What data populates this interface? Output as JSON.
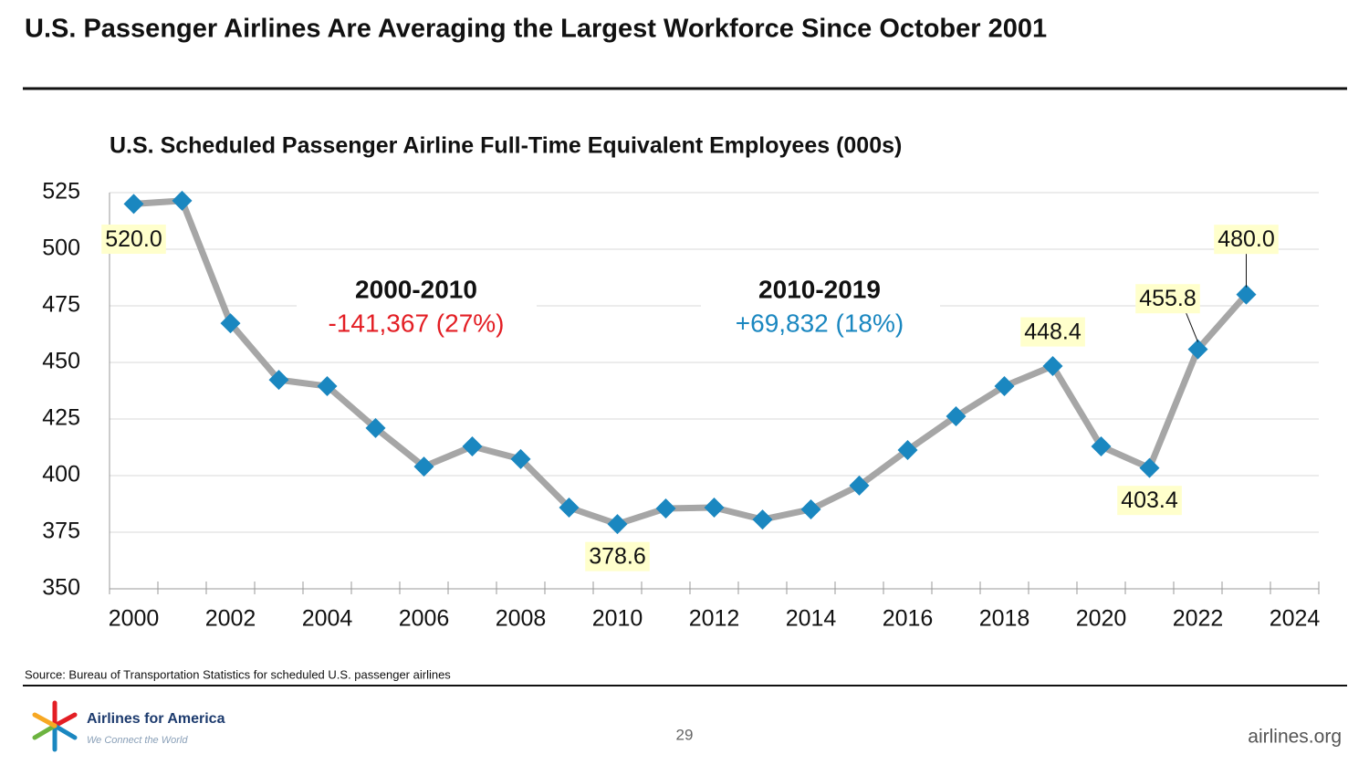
{
  "header": {
    "title": "U.S. Passenger Airlines Are Averaging the Largest Workforce Since October 2001"
  },
  "chart_data": {
    "type": "line",
    "title": "U.S. Scheduled Passenger Airline Full-Time Equivalent Employees (000s)",
    "categories": [
      "2000",
      null,
      "2002",
      null,
      "2004",
      null,
      "2006",
      null,
      "2008",
      null,
      "2010",
      null,
      "2012",
      null,
      "2014",
      null,
      "2016",
      null,
      "2018",
      null,
      "2020",
      null,
      "2022",
      null,
      "2024"
    ],
    "series": [
      {
        "name": "FTE employees",
        "color": "#1a87c0",
        "line_color": "#a6a6a6",
        "values": [
          520.0,
          521.4,
          467.3,
          442.3,
          439.5,
          421.0,
          404.0,
          412.9,
          407.3,
          385.9,
          378.6,
          385.5,
          385.9,
          380.6,
          385.1,
          395.6,
          411.3,
          426.2,
          439.5,
          448.4,
          412.9,
          403.4,
          455.8,
          480.0,
          null
        ],
        "value_labels": [
          "520.0",
          null,
          null,
          null,
          null,
          null,
          null,
          null,
          null,
          null,
          "378.6",
          null,
          null,
          null,
          null,
          null,
          null,
          null,
          null,
          "448.4",
          null,
          "403.4",
          "455.8",
          "480.0",
          null
        ]
      }
    ],
    "ylim": [
      350,
      525
    ],
    "yticks": [
      350,
      375,
      400,
      425,
      450,
      475,
      500,
      525
    ],
    "grid": true,
    "annotations": [
      {
        "title": "2000-2010",
        "text": "-141,367 (27%)",
        "color": "#e31e24"
      },
      {
        "title": "2010-2019",
        "text": "+69,832 (18%)",
        "color": "#1a87c0"
      }
    ],
    "source": "Source: Bureau of Transportation Statistics for scheduled U.S. passenger airlines"
  },
  "footer": {
    "logo_name": "Airlines for America",
    "tagline": "We Connect the World",
    "page": "29",
    "website": "airlines.org"
  }
}
